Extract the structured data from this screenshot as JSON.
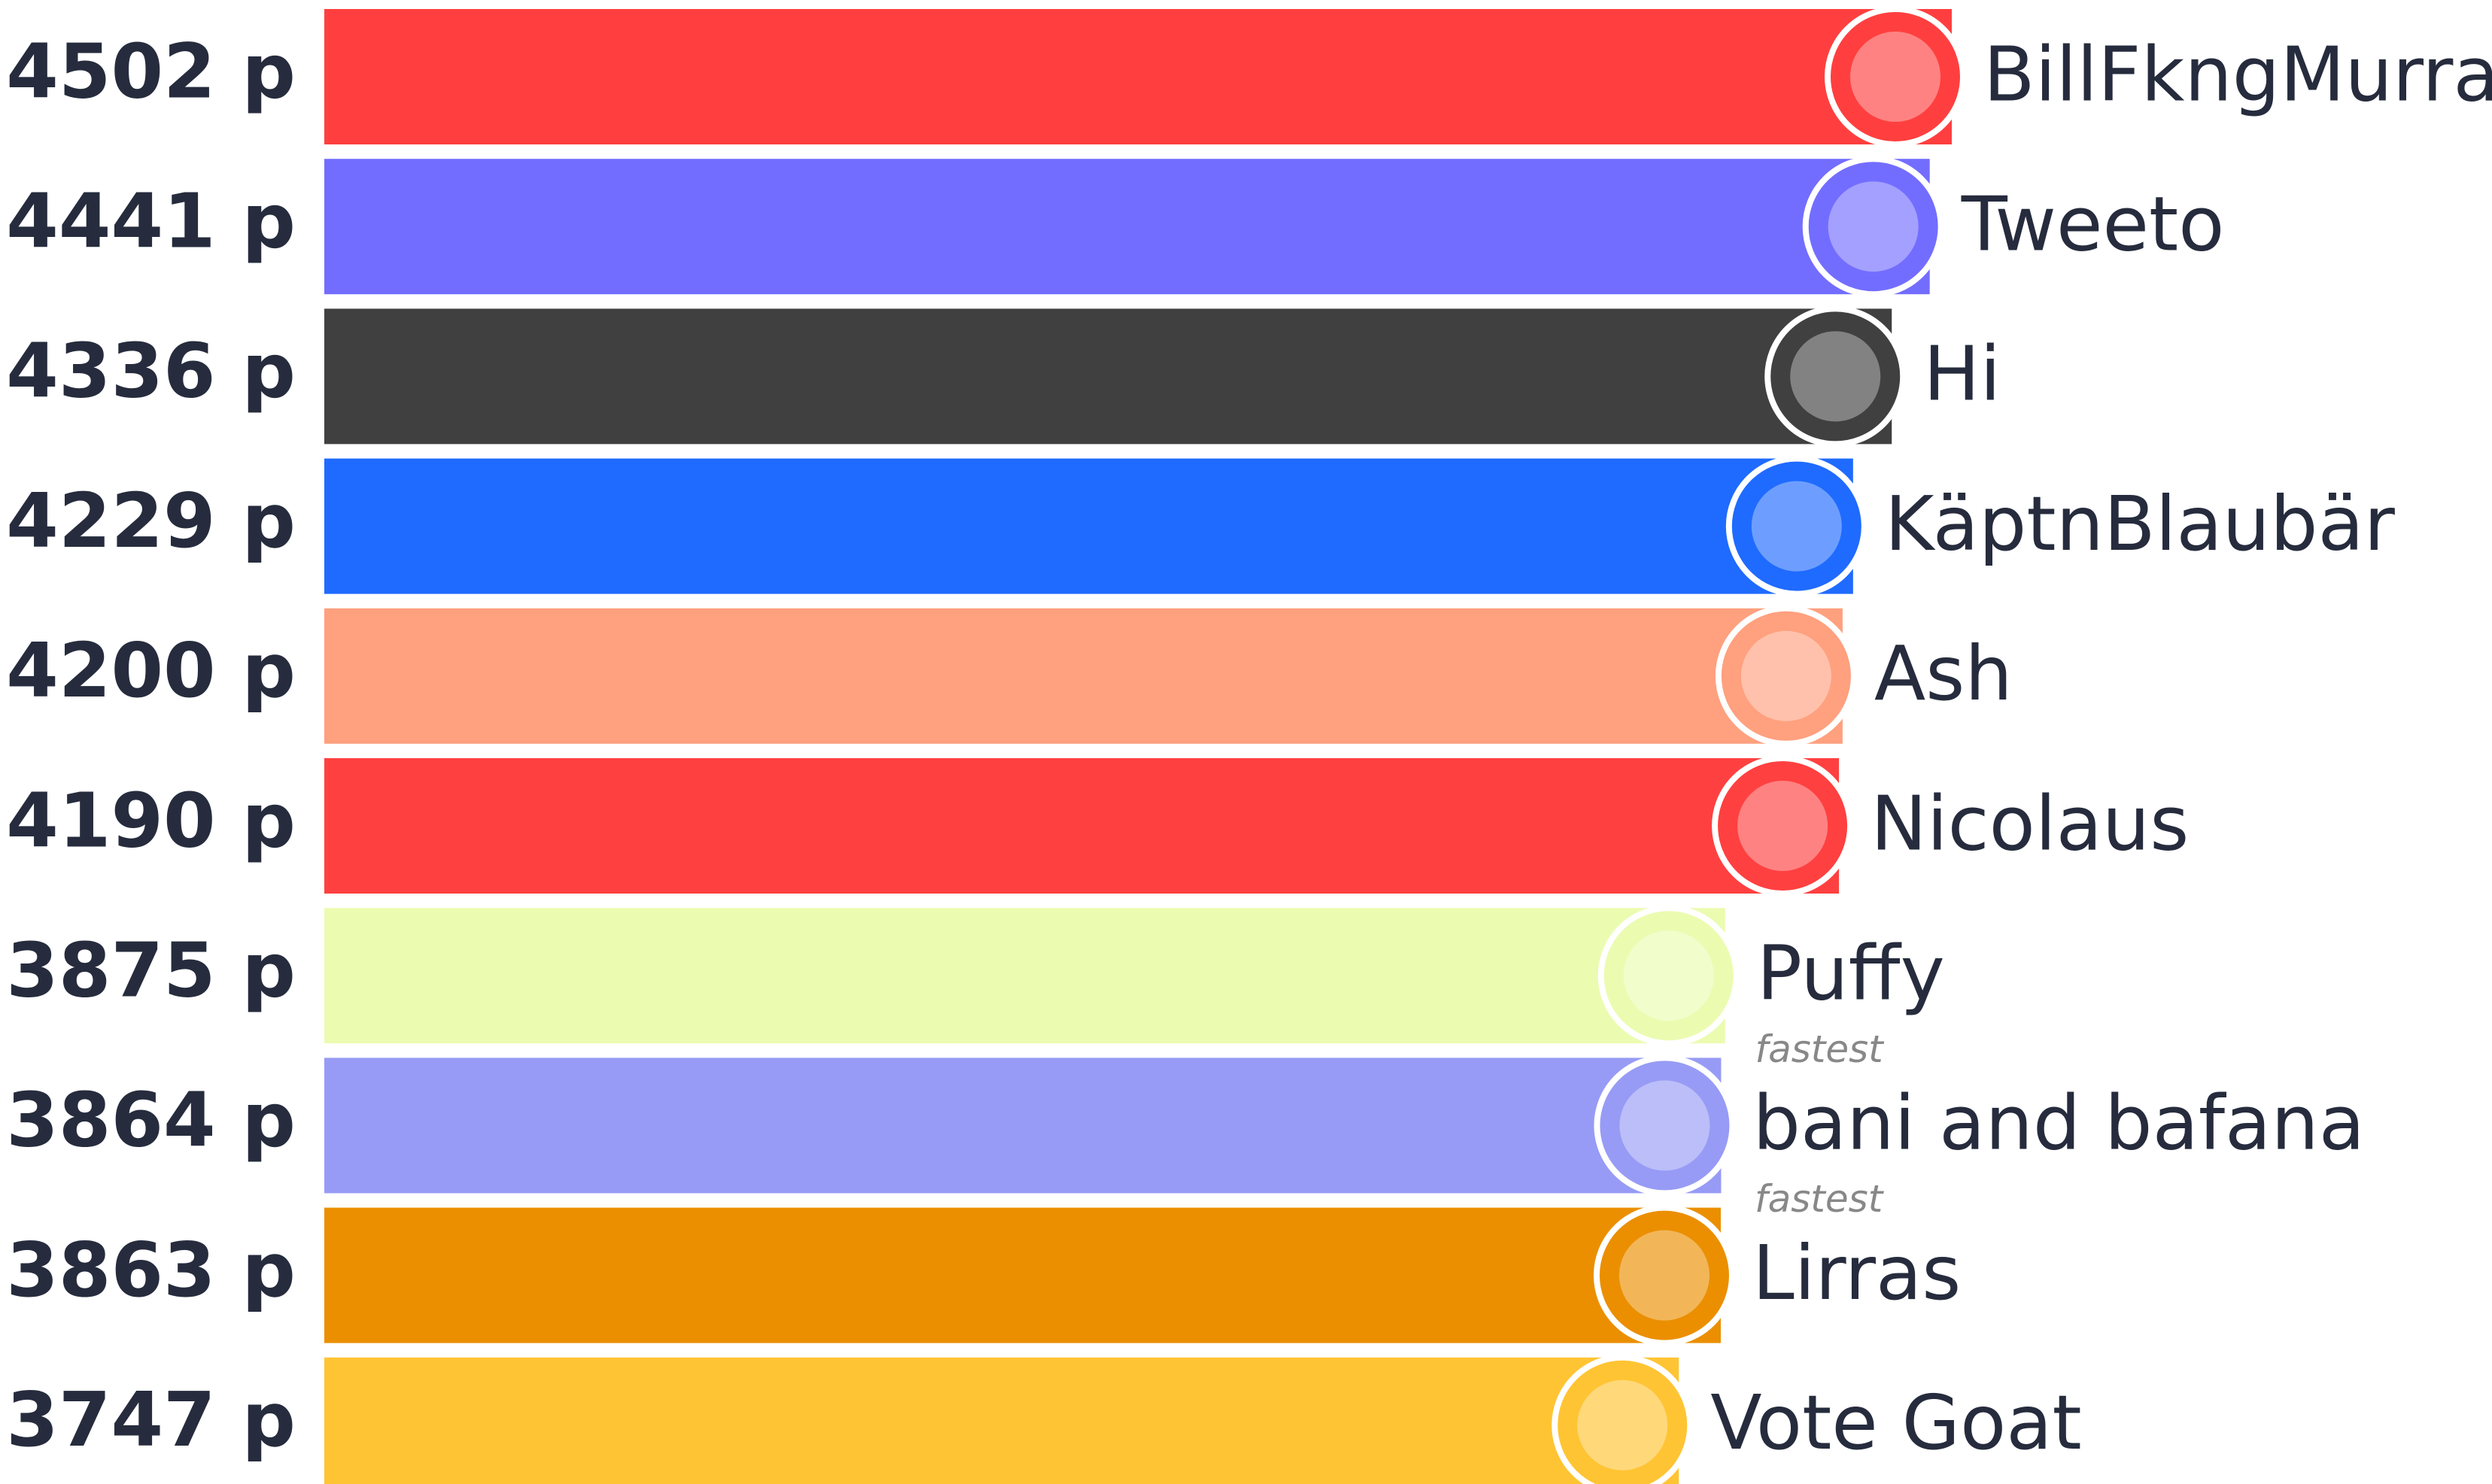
{
  "chart_data": {
    "type": "bar",
    "categories": [
      "BillFkngMurray",
      "Tweeto",
      "Hi",
      "KäptnBlaubär",
      "Ash",
      "Nicolaus",
      "Puffy",
      "bani and bafana",
      "Lirras",
      "Vote Goat"
    ],
    "values": [
      4502,
      4441,
      4336,
      4229,
      4200,
      4190,
      3875,
      3864,
      3863,
      3747
    ],
    "value_labels": [
      "4502 p",
      "4441 p",
      "4336 p",
      "4229 p",
      "4200 p",
      "4190 p",
      "3875 p",
      "3864 p",
      "3863 p",
      "3747 p"
    ],
    "colors": [
      "#ff3f3f",
      "#736dff",
      "#404040",
      "#1f6bff",
      "#ffa07e",
      "#ff4040",
      "#ebfcb1",
      "#979bf5",
      "#eb8f00",
      "#ffc433"
    ],
    "badges": [
      null,
      null,
      null,
      null,
      null,
      null,
      null,
      "fastest",
      "fastest",
      null
    ]
  }
}
